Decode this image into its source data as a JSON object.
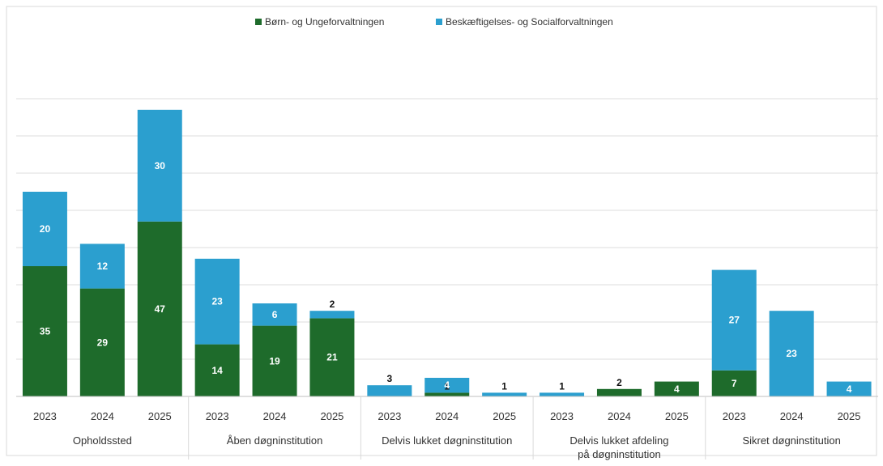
{
  "chart_data": {
    "type": "bar",
    "stacked": true,
    "legend_position": "top",
    "gridlines": true,
    "ylim": [
      0,
      85
    ],
    "colors": {
      "series1": "#1e6b2b",
      "series2": "#2b9fcf"
    },
    "groups": [
      {
        "label": "Opholdssted",
        "years": [
          "2023",
          "2024",
          "2025"
        ]
      },
      {
        "label": "Åben døgninstitution",
        "years": [
          "2023",
          "2024",
          "2025"
        ]
      },
      {
        "label": "Delvis lukket døgninstitution",
        "years": [
          "2023",
          "2024",
          "2025"
        ]
      },
      {
        "label": "Delvis lukket afdeling på døgninstitution",
        "years": [
          "2023",
          "2024",
          "2025"
        ]
      },
      {
        "label": "Sikret døgninstitution",
        "years": [
          "2023",
          "2024",
          "2025"
        ]
      }
    ],
    "series": [
      {
        "name": "Børn- og Ungeforvaltningen",
        "values": [
          35,
          29,
          47,
          14,
          19,
          21,
          null,
          1,
          null,
          null,
          2,
          4,
          7,
          null,
          null
        ]
      },
      {
        "name": "Beskæftigelses- og Socialforvaltningen",
        "values": [
          20,
          12,
          30,
          23,
          6,
          2,
          3,
          4,
          1,
          1,
          null,
          null,
          27,
          23,
          4
        ]
      }
    ]
  }
}
